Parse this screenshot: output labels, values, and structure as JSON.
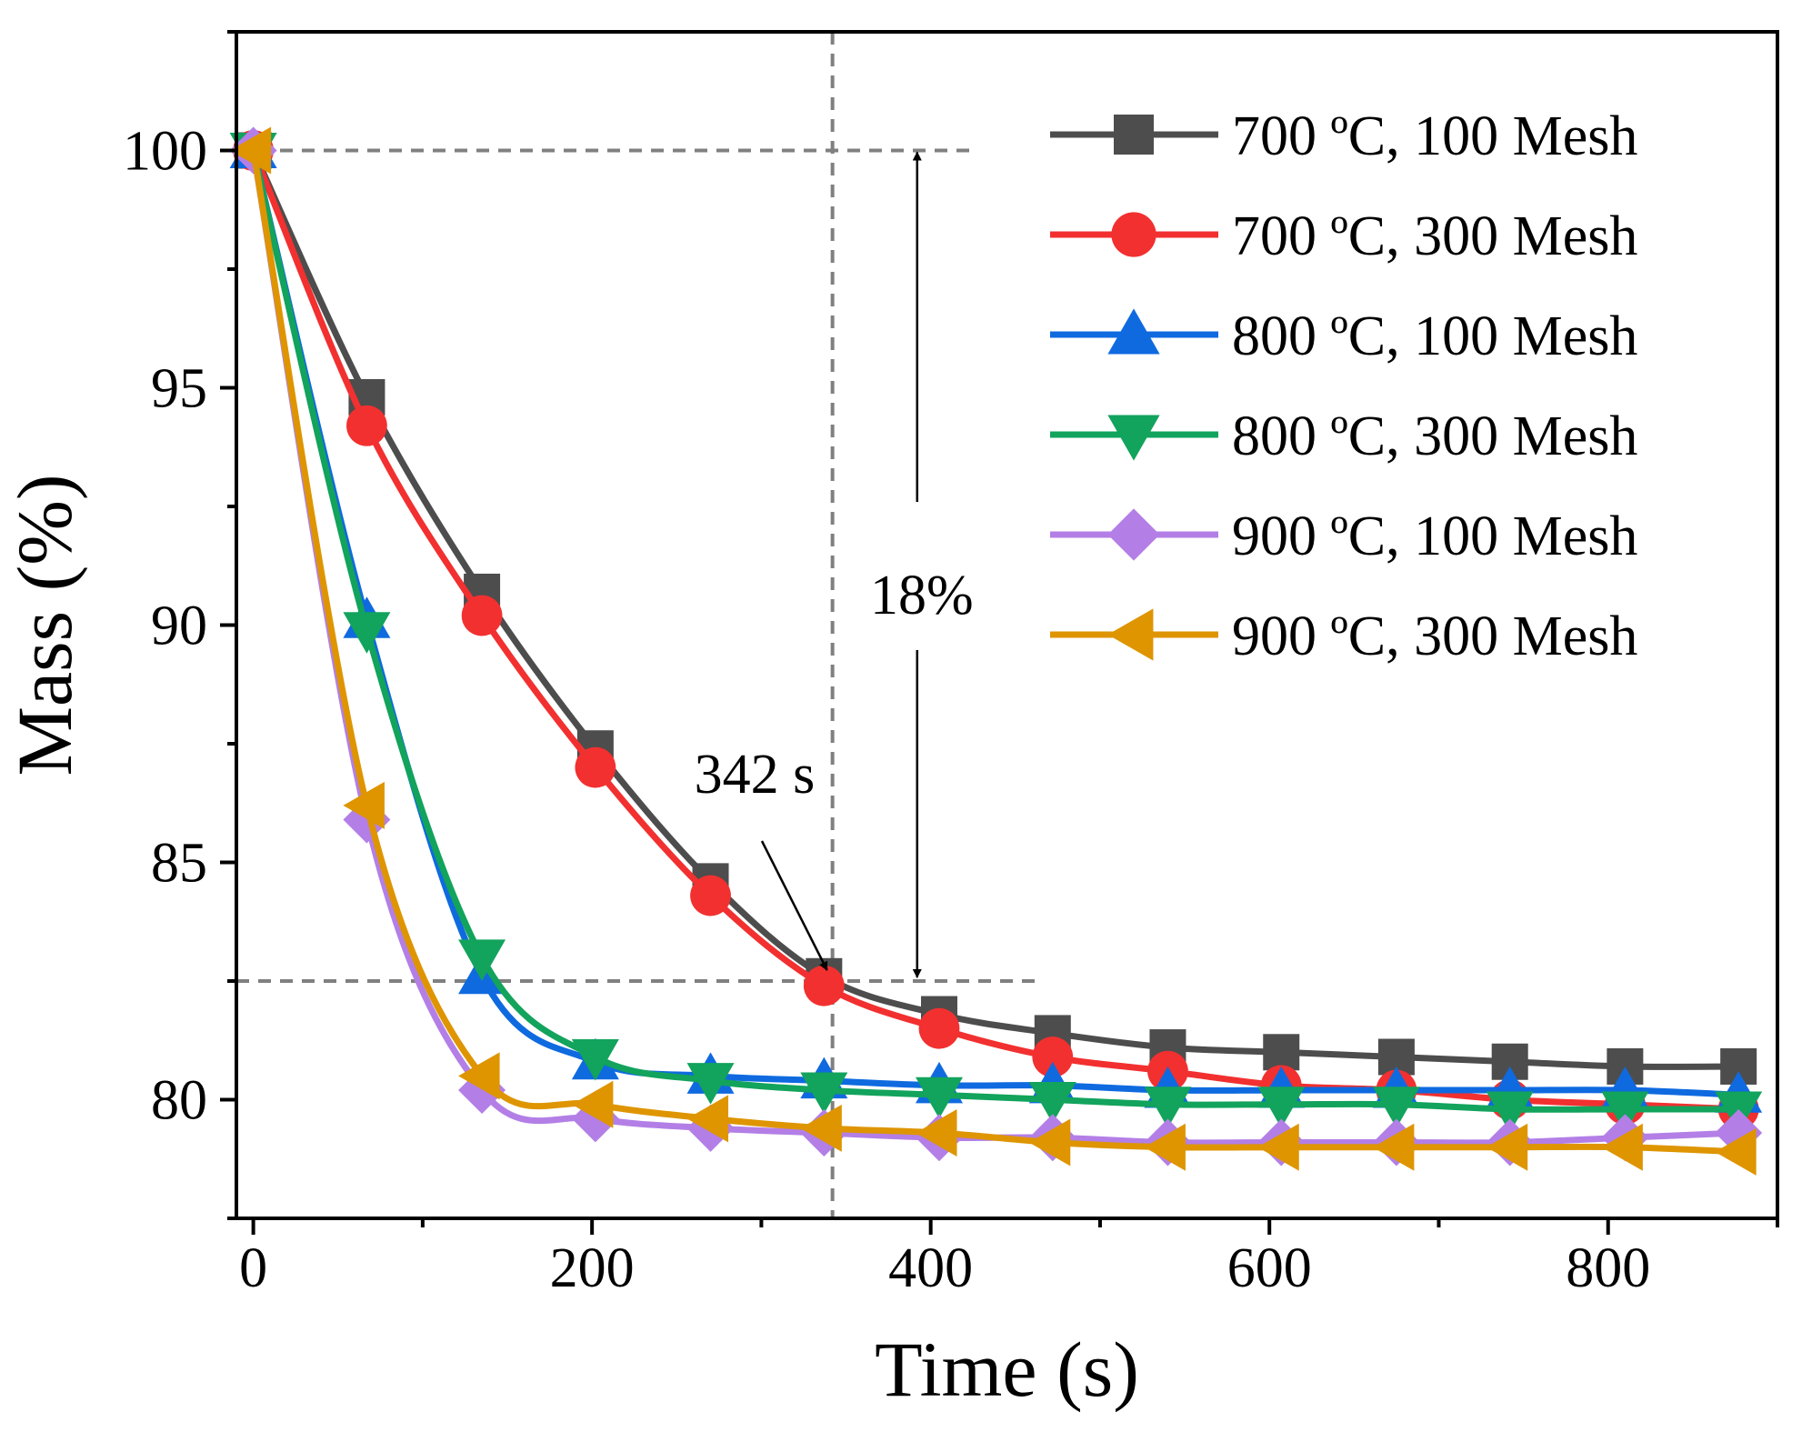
{
  "chart_data": {
    "type": "line",
    "xlabel": "Time (s)",
    "ylabel": "Mass (%)",
    "xlim": [
      -10,
      900
    ],
    "ylim": [
      77.5,
      102.5
    ],
    "xticks": [
      0,
      200,
      400,
      600,
      800
    ],
    "xtick_labels": [
      "0",
      "200",
      "400",
      "600",
      "800"
    ],
    "yticks": [
      80,
      85,
      90,
      95,
      100
    ],
    "ytick_labels": [
      "80",
      "85",
      "90",
      "95",
      "100"
    ],
    "grid": false,
    "legend_position": "top-right",
    "series": [
      {
        "name": "700 ºC, 100 Mesh",
        "color": "#4d4d4d",
        "marker": "square",
        "x": [
          0,
          67,
          135,
          202,
          270,
          337,
          405,
          472,
          540,
          607,
          675,
          742,
          810,
          877
        ],
        "y": [
          100,
          94.8,
          90.7,
          87.4,
          84.6,
          82.6,
          81.8,
          81.4,
          81.1,
          81.0,
          80.9,
          80.8,
          80.7,
          80.7
        ]
      },
      {
        "name": "700 ºC, 300 Mesh",
        "color": "#f23030",
        "marker": "circle",
        "x": [
          0,
          67,
          135,
          202,
          270,
          337,
          405,
          472,
          540,
          607,
          675,
          742,
          810,
          877
        ],
        "y": [
          100,
          94.2,
          90.2,
          87.0,
          84.3,
          82.4,
          81.5,
          80.9,
          80.6,
          80.3,
          80.2,
          80.0,
          79.9,
          79.8
        ]
      },
      {
        "name": "800 ºC, 100 Mesh",
        "color": "#0f6ae0",
        "marker": "triangle-up",
        "x": [
          0,
          67,
          135,
          202,
          270,
          337,
          405,
          472,
          540,
          607,
          675,
          742,
          810,
          877
        ],
        "y": [
          100,
          90.1,
          82.6,
          80.8,
          80.5,
          80.4,
          80.3,
          80.3,
          80.2,
          80.2,
          80.2,
          80.2,
          80.2,
          80.1
        ]
      },
      {
        "name": "800 ºC, 300 Mesh",
        "color": "#12a35c",
        "marker": "triangle-down",
        "x": [
          0,
          67,
          135,
          202,
          270,
          337,
          405,
          472,
          540,
          607,
          675,
          742,
          810,
          877
        ],
        "y": [
          100,
          89.9,
          83.0,
          80.9,
          80.4,
          80.2,
          80.1,
          80.0,
          79.9,
          79.9,
          79.9,
          79.8,
          79.8,
          79.8
        ]
      },
      {
        "name": "900 ºC, 100 Mesh",
        "color": "#b37fe6",
        "marker": "diamond",
        "x": [
          0,
          67,
          135,
          202,
          270,
          337,
          405,
          472,
          540,
          607,
          675,
          742,
          810,
          877
        ],
        "y": [
          100,
          85.9,
          80.2,
          79.6,
          79.4,
          79.3,
          79.2,
          79.2,
          79.1,
          79.1,
          79.1,
          79.1,
          79.2,
          79.3
        ]
      },
      {
        "name": "900 ºC, 300 Mesh",
        "color": "#de9500",
        "marker": "triangle-left",
        "x": [
          0,
          67,
          135,
          202,
          270,
          337,
          405,
          472,
          540,
          607,
          675,
          742,
          810,
          877
        ],
        "y": [
          100,
          86.2,
          80.5,
          79.9,
          79.6,
          79.4,
          79.3,
          79.1,
          79.0,
          79.0,
          79.0,
          79.0,
          79.0,
          78.9
        ]
      }
    ],
    "reference_lines": {
      "h_top_y": 100,
      "h_top_x": [
        -10,
        425
      ],
      "h_bottom_y": 82.5,
      "h_bottom_x": [
        -10,
        465
      ],
      "v_x": 342,
      "v_y": [
        77.5,
        102.5
      ]
    },
    "annotations": {
      "time_label": "342 s",
      "time_point": [
        342,
        82.5
      ],
      "drop_label": "18%",
      "drop_arrow_x": 392,
      "drop_range": [
        82.5,
        100
      ]
    }
  }
}
